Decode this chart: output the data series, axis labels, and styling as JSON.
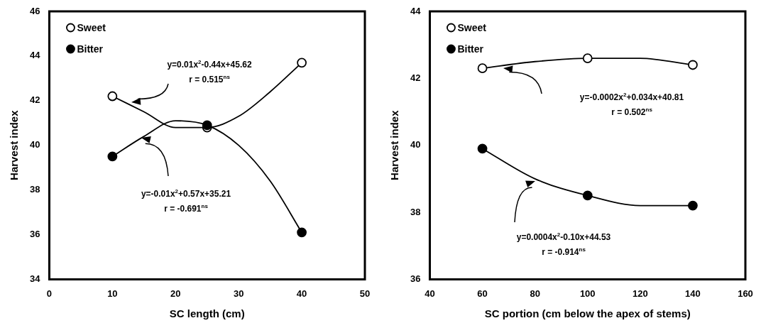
{
  "chart_data": [
    {
      "type": "scatter",
      "xlabel": "SC length (cm)",
      "ylabel": "Harvest index",
      "x": [
        10,
        25,
        40
      ],
      "xlim": [
        0,
        50
      ],
      "xticks": [
        0,
        10,
        20,
        30,
        40,
        50
      ],
      "ylim": [
        34,
        46
      ],
      "yticks": [
        34,
        36,
        38,
        40,
        42,
        44,
        46
      ],
      "marker": "circle",
      "legend": "top left",
      "grid": false,
      "series": [
        {
          "name": "Sweet",
          "color": "#ffffff",
          "values": [
            42.2,
            40.8,
            43.7
          ]
        },
        {
          "name": "Bitter",
          "color": "#000000",
          "values": [
            39.5,
            40.9,
            36.1
          ]
        },
        {
          "type": "line",
          "marker": "none",
          "color": "#000000",
          "x": [
            10,
            15,
            20,
            25,
            30,
            35,
            40
          ],
          "values": [
            42.2,
            41.5,
            40.8,
            40.8,
            41.3,
            42.4,
            43.7
          ]
        },
        {
          "type": "line",
          "marker": "none",
          "color": "#000000",
          "x": [
            10,
            15,
            20,
            25,
            30,
            35,
            40
          ],
          "values": [
            39.5,
            40.4,
            41.1,
            40.9,
            40.0,
            38.4,
            36.1
          ]
        }
      ],
      "annotations": [
        "y=0.01x$^{2}$-0.44x+45.62\nr = 0.515$^{ns}$",
        "y=-0.01x$^{2}$+0.57x+35.21\nr = -0.691$^{ns}$"
      ]
    },
    {
      "type": "scatter",
      "xlabel": "SC portion (cm below the apex of stems)",
      "ylabel": "Harvest index",
      "x": [
        60,
        100,
        140
      ],
      "xlim": [
        40,
        160
      ],
      "xticks": [
        40,
        60,
        80,
        100,
        120,
        140,
        160
      ],
      "ylim": [
        36,
        44
      ],
      "yticks": [
        36,
        38,
        40,
        42,
        44
      ],
      "marker": "circle",
      "legend": "top left",
      "grid": false,
      "series": [
        {
          "name": "Sweet",
          "color": "#ffffff",
          "values": [
            42.3,
            42.6,
            42.4
          ]
        },
        {
          "name": "Bitter",
          "color": "#000000",
          "values": [
            39.9,
            38.5,
            38.2
          ]
        },
        {
          "type": "line",
          "marker": "none",
          "color": "#000000",
          "x": [
            60,
            80,
            100,
            120,
            140
          ],
          "values": [
            42.3,
            42.5,
            42.6,
            42.6,
            42.4
          ]
        },
        {
          "type": "line",
          "marker": "none",
          "color": "#000000",
          "x": [
            60,
            80,
            100,
            120,
            140
          ],
          "values": [
            39.9,
            39.0,
            38.5,
            38.2,
            38.2
          ]
        }
      ],
      "annotations": [
        "y=-0.0002x$^{2}$+0.034x+40.81\nr = 0.502$^{ns}$",
        "y=0.0004x$^{2}$-0.10x+44.53\nr = -0.914$^{ns}$"
      ]
    }
  ]
}
